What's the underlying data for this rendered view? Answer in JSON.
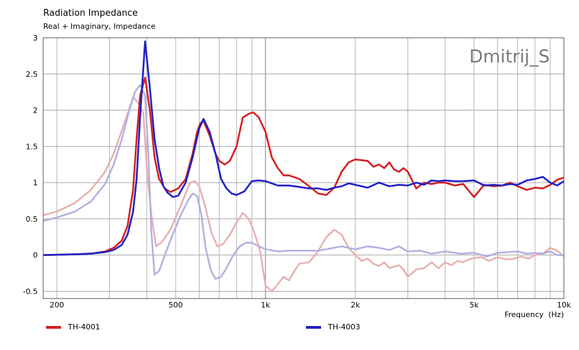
{
  "chart_data": {
    "type": "line",
    "title": "Radiation Impedance",
    "subtitle": "Real + Imaginary, Impedance",
    "xlabel": "Frequency  (Hz)",
    "ylabel": "",
    "xscale": "log",
    "xlim": [
      180,
      10000
    ],
    "ylim": [
      -0.6,
      3
    ],
    "grid": true,
    "legend_position": "bottom",
    "watermark": "Dmitrij_S",
    "x_ticks": [
      {
        "value": 200,
        "label": "200"
      },
      {
        "value": 500,
        "label": "500"
      },
      {
        "value": 1000,
        "label": "1k"
      },
      {
        "value": 2000,
        "label": "2k"
      },
      {
        "value": 5000,
        "label": "5k"
      },
      {
        "value": 10000,
        "label": "10k"
      }
    ],
    "y_ticks": [
      {
        "value": 3,
        "label": "3"
      },
      {
        "value": 2.5,
        "label": "2.5"
      },
      {
        "value": 2,
        "label": "2"
      },
      {
        "value": 1.5,
        "label": "1.5"
      },
      {
        "value": 1,
        "label": "1"
      },
      {
        "value": 0.5,
        "label": "0.5"
      },
      {
        "value": 0,
        "label": "0"
      },
      {
        "value": -0.5,
        "label": "-0.5"
      }
    ],
    "series": [
      {
        "name": "TH-4001",
        "part": "real",
        "color": "#d42020",
        "points": [
          [
            180,
            0
          ],
          [
            230,
            0.01
          ],
          [
            260,
            0.02
          ],
          [
            290,
            0.05
          ],
          [
            310,
            0.1
          ],
          [
            330,
            0.2
          ],
          [
            345,
            0.4
          ],
          [
            360,
            0.9
          ],
          [
            370,
            1.6
          ],
          [
            380,
            2.2
          ],
          [
            395,
            2.45
          ],
          [
            410,
            2.0
          ],
          [
            425,
            1.35
          ],
          [
            440,
            1.05
          ],
          [
            460,
            0.92
          ],
          [
            480,
            0.87
          ],
          [
            510,
            0.92
          ],
          [
            540,
            1.05
          ],
          [
            570,
            1.4
          ],
          [
            590,
            1.7
          ],
          [
            605,
            1.82
          ],
          [
            620,
            1.85
          ],
          [
            650,
            1.65
          ],
          [
            680,
            1.4
          ],
          [
            700,
            1.3
          ],
          [
            730,
            1.25
          ],
          [
            760,
            1.3
          ],
          [
            800,
            1.5
          ],
          [
            840,
            1.9
          ],
          [
            880,
            1.95
          ],
          [
            910,
            1.97
          ],
          [
            950,
            1.9
          ],
          [
            1000,
            1.7
          ],
          [
            1050,
            1.35
          ],
          [
            1100,
            1.2
          ],
          [
            1150,
            1.1
          ],
          [
            1200,
            1.1
          ],
          [
            1300,
            1.05
          ],
          [
            1400,
            0.95
          ],
          [
            1500,
            0.85
          ],
          [
            1600,
            0.83
          ],
          [
            1700,
            0.93
          ],
          [
            1800,
            1.15
          ],
          [
            1900,
            1.28
          ],
          [
            2000,
            1.32
          ],
          [
            2200,
            1.3
          ],
          [
            2300,
            1.22
          ],
          [
            2400,
            1.25
          ],
          [
            2500,
            1.2
          ],
          [
            2600,
            1.28
          ],
          [
            2700,
            1.18
          ],
          [
            2800,
            1.15
          ],
          [
            2900,
            1.2
          ],
          [
            3000,
            1.15
          ],
          [
            3200,
            0.92
          ],
          [
            3400,
            1.0
          ],
          [
            3600,
            0.98
          ],
          [
            3800,
            1.0
          ],
          [
            4000,
            1.0
          ],
          [
            4300,
            0.96
          ],
          [
            4600,
            0.98
          ],
          [
            5000,
            0.8
          ],
          [
            5400,
            0.97
          ],
          [
            5800,
            0.95
          ],
          [
            6200,
            0.96
          ],
          [
            6600,
            1.0
          ],
          [
            7000,
            0.95
          ],
          [
            7500,
            0.9
          ],
          [
            8000,
            0.93
          ],
          [
            8500,
            0.92
          ],
          [
            9000,
            0.97
          ],
          [
            9500,
            1.04
          ],
          [
            10000,
            1.07
          ]
        ]
      },
      {
        "name": "TH-4003",
        "part": "real",
        "color": "#2020c8",
        "points": [
          [
            180,
            0
          ],
          [
            230,
            0.01
          ],
          [
            260,
            0.02
          ],
          [
            290,
            0.04
          ],
          [
            310,
            0.07
          ],
          [
            330,
            0.14
          ],
          [
            345,
            0.28
          ],
          [
            360,
            0.6
          ],
          [
            370,
            1.05
          ],
          [
            380,
            1.9
          ],
          [
            395,
            2.95
          ],
          [
            410,
            2.3
          ],
          [
            425,
            1.6
          ],
          [
            440,
            1.2
          ],
          [
            455,
            0.95
          ],
          [
            470,
            0.86
          ],
          [
            490,
            0.8
          ],
          [
            510,
            0.82
          ],
          [
            540,
            1.0
          ],
          [
            570,
            1.35
          ],
          [
            600,
            1.75
          ],
          [
            620,
            1.88
          ],
          [
            650,
            1.7
          ],
          [
            680,
            1.4
          ],
          [
            710,
            1.05
          ],
          [
            740,
            0.92
          ],
          [
            770,
            0.85
          ],
          [
            800,
            0.83
          ],
          [
            850,
            0.88
          ],
          [
            900,
            1.02
          ],
          [
            950,
            1.03
          ],
          [
            1000,
            1.02
          ],
          [
            1100,
            0.96
          ],
          [
            1200,
            0.96
          ],
          [
            1300,
            0.94
          ],
          [
            1400,
            0.92
          ],
          [
            1500,
            0.92
          ],
          [
            1600,
            0.9
          ],
          [
            1700,
            0.93
          ],
          [
            1800,
            0.95
          ],
          [
            1900,
            0.99
          ],
          [
            2000,
            0.97
          ],
          [
            2200,
            0.93
          ],
          [
            2400,
            1.0
          ],
          [
            2600,
            0.95
          ],
          [
            2800,
            0.97
          ],
          [
            3000,
            0.96
          ],
          [
            3200,
            1.0
          ],
          [
            3400,
            0.97
          ],
          [
            3600,
            1.03
          ],
          [
            3800,
            1.02
          ],
          [
            4000,
            1.03
          ],
          [
            4300,
            1.02
          ],
          [
            4600,
            1.02
          ],
          [
            5000,
            1.03
          ],
          [
            5400,
            0.96
          ],
          [
            5800,
            0.97
          ],
          [
            6200,
            0.96
          ],
          [
            6600,
            0.98
          ],
          [
            7000,
            0.97
          ],
          [
            7500,
            1.03
          ],
          [
            8000,
            1.05
          ],
          [
            8500,
            1.08
          ],
          [
            9000,
            1.0
          ],
          [
            9500,
            0.96
          ],
          [
            10000,
            1.02
          ]
        ]
      },
      {
        "name": "TH-4001",
        "part": "imaginary",
        "color": "#e6b0ae",
        "points": [
          [
            180,
            0.55
          ],
          [
            200,
            0.6
          ],
          [
            230,
            0.72
          ],
          [
            260,
            0.9
          ],
          [
            290,
            1.15
          ],
          [
            310,
            1.4
          ],
          [
            330,
            1.72
          ],
          [
            345,
            1.95
          ],
          [
            360,
            2.18
          ],
          [
            375,
            2.1
          ],
          [
            390,
            1.95
          ],
          [
            400,
            1.2
          ],
          [
            415,
            0.55
          ],
          [
            430,
            0.12
          ],
          [
            450,
            0.18
          ],
          [
            480,
            0.35
          ],
          [
            510,
            0.6
          ],
          [
            540,
            0.85
          ],
          [
            560,
            1.0
          ],
          [
            580,
            1.02
          ],
          [
            600,
            0.95
          ],
          [
            630,
            0.65
          ],
          [
            660,
            0.3
          ],
          [
            690,
            0.12
          ],
          [
            720,
            0.15
          ],
          [
            760,
            0.28
          ],
          [
            800,
            0.45
          ],
          [
            840,
            0.58
          ],
          [
            880,
            0.5
          ],
          [
            920,
            0.3
          ],
          [
            960,
            0.05
          ],
          [
            1000,
            -0.42
          ],
          [
            1050,
            -0.5
          ],
          [
            1100,
            -0.4
          ],
          [
            1150,
            -0.3
          ],
          [
            1200,
            -0.35
          ],
          [
            1250,
            -0.22
          ],
          [
            1300,
            -0.12
          ],
          [
            1400,
            -0.1
          ],
          [
            1500,
            0.05
          ],
          [
            1600,
            0.25
          ],
          [
            1700,
            0.35
          ],
          [
            1800,
            0.28
          ],
          [
            1900,
            0.1
          ],
          [
            2000,
            0.0
          ],
          [
            2100,
            -0.08
          ],
          [
            2200,
            -0.05
          ],
          [
            2300,
            -0.12
          ],
          [
            2400,
            -0.15
          ],
          [
            2500,
            -0.1
          ],
          [
            2600,
            -0.18
          ],
          [
            2700,
            -0.16
          ],
          [
            2800,
            -0.14
          ],
          [
            2900,
            -0.2
          ],
          [
            3000,
            -0.3
          ],
          [
            3100,
            -0.25
          ],
          [
            3200,
            -0.2
          ],
          [
            3400,
            -0.18
          ],
          [
            3600,
            -0.1
          ],
          [
            3800,
            -0.18
          ],
          [
            4000,
            -0.1
          ],
          [
            4200,
            -0.14
          ],
          [
            4400,
            -0.08
          ],
          [
            4600,
            -0.1
          ],
          [
            4800,
            -0.06
          ],
          [
            5000,
            -0.04
          ],
          [
            5300,
            -0.03
          ],
          [
            5600,
            -0.08
          ],
          [
            6000,
            -0.03
          ],
          [
            6400,
            -0.06
          ],
          [
            6800,
            -0.05
          ],
          [
            7200,
            -0.02
          ],
          [
            7600,
            -0.05
          ],
          [
            8000,
            0.0
          ],
          [
            8500,
            0.02
          ],
          [
            9000,
            0.1
          ],
          [
            9500,
            0.06
          ],
          [
            10000,
            -0.02
          ]
        ]
      },
      {
        "name": "TH-4003",
        "part": "imaginary",
        "color": "#b0b0e0",
        "points": [
          [
            180,
            0.47
          ],
          [
            200,
            0.52
          ],
          [
            230,
            0.6
          ],
          [
            260,
            0.74
          ],
          [
            290,
            0.98
          ],
          [
            310,
            1.25
          ],
          [
            330,
            1.6
          ],
          [
            350,
            2.0
          ],
          [
            365,
            2.25
          ],
          [
            380,
            2.35
          ],
          [
            395,
            2.2
          ],
          [
            405,
            1.4
          ],
          [
            415,
            0.3
          ],
          [
            425,
            -0.27
          ],
          [
            440,
            -0.22
          ],
          [
            460,
            0.0
          ],
          [
            480,
            0.2
          ],
          [
            500,
            0.38
          ],
          [
            520,
            0.55
          ],
          [
            550,
            0.75
          ],
          [
            570,
            0.85
          ],
          [
            590,
            0.82
          ],
          [
            610,
            0.55
          ],
          [
            630,
            0.1
          ],
          [
            655,
            -0.2
          ],
          [
            680,
            -0.33
          ],
          [
            710,
            -0.3
          ],
          [
            740,
            -0.18
          ],
          [
            780,
            0.0
          ],
          [
            820,
            0.12
          ],
          [
            860,
            0.17
          ],
          [
            900,
            0.17
          ],
          [
            950,
            0.12
          ],
          [
            1000,
            0.08
          ],
          [
            1100,
            0.05
          ],
          [
            1200,
            0.06
          ],
          [
            1300,
            0.06
          ],
          [
            1400,
            0.06
          ],
          [
            1500,
            0.06
          ],
          [
            1600,
            0.08
          ],
          [
            1800,
            0.12
          ],
          [
            2000,
            0.08
          ],
          [
            2200,
            0.12
          ],
          [
            2400,
            0.1
          ],
          [
            2600,
            0.07
          ],
          [
            2800,
            0.12
          ],
          [
            3000,
            0.05
          ],
          [
            3300,
            0.06
          ],
          [
            3600,
            0.02
          ],
          [
            4000,
            0.05
          ],
          [
            4500,
            0.02
          ],
          [
            5000,
            0.03
          ],
          [
            5500,
            -0.02
          ],
          [
            6000,
            0.03
          ],
          [
            6500,
            0.04
          ],
          [
            7000,
            0.05
          ],
          [
            7500,
            0.02
          ],
          [
            8000,
            0.03
          ],
          [
            8500,
            0.02
          ],
          [
            9000,
            0.05
          ],
          [
            9500,
            0.0
          ],
          [
            10000,
            0.0
          ]
        ]
      }
    ],
    "legend": [
      {
        "label": "TH-4001",
        "color": "#d42020"
      },
      {
        "label": "TH-4003",
        "color": "#2020c8"
      }
    ]
  }
}
